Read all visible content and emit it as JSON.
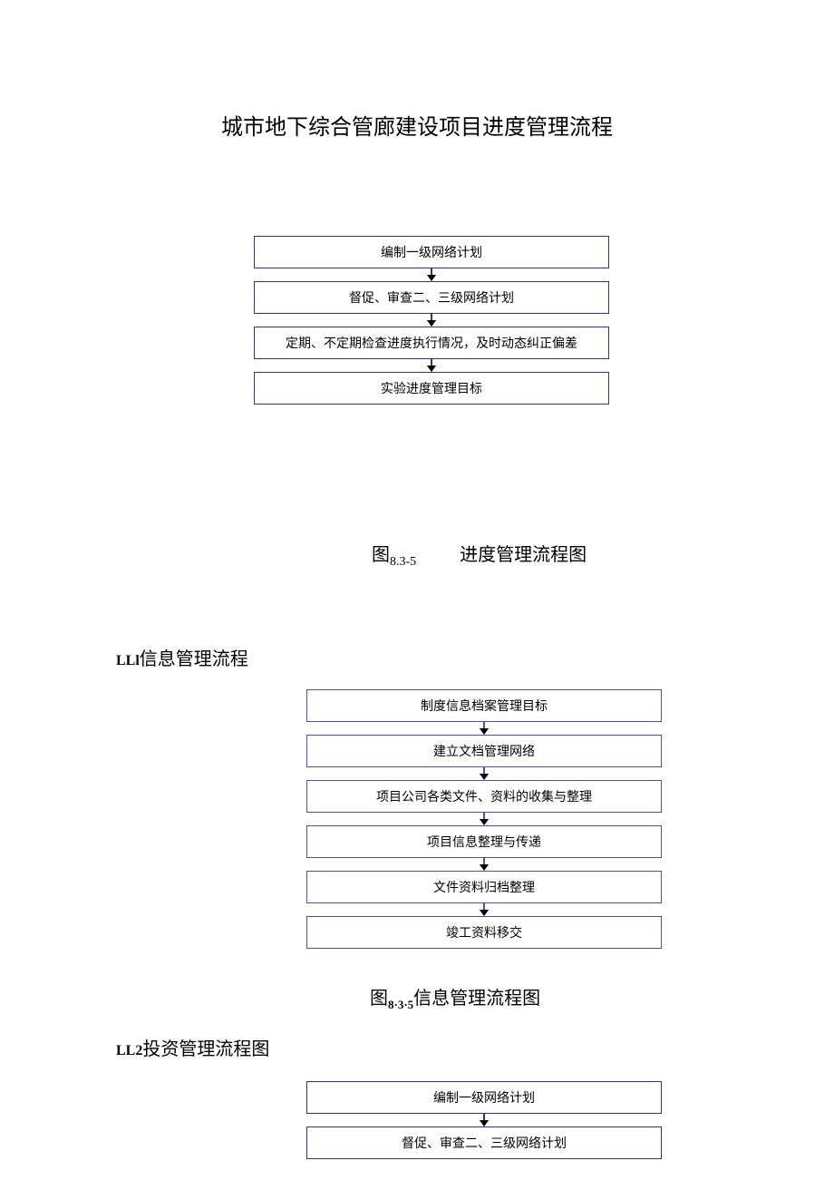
{
  "page_title": "城市地下综合管廊建设项目进度管理流程",
  "flowchart1": {
    "type": "flowchart",
    "border_color": "#2e3192",
    "arrow_color": "#2e3192",
    "background_color": "#ffffff",
    "text_color": "#000000",
    "box_fontsize": 14,
    "nodes": [
      {
        "label": "编制一级网络计划"
      },
      {
        "label": "督促、审查二、三级网络计划"
      },
      {
        "label": "定期、不定期检查进度执行情况，及时动态纠正偏差"
      },
      {
        "label": "实验进度管理目标"
      }
    ]
  },
  "caption1": {
    "prefix": "图",
    "sub": "8.3-5",
    "suffix": "进度管理流程图"
  },
  "section1": {
    "prefix": "LLl",
    "text": "信息管理流程"
  },
  "flowchart2": {
    "type": "flowchart",
    "border_color": "#4c52a8",
    "arrow_color": "#4c52a8",
    "background_color": "#ffffff",
    "text_color": "#000000",
    "box_fontsize": 14,
    "nodes": [
      {
        "label": "制度信息档案管理目标"
      },
      {
        "label": "建立文档管理网络"
      },
      {
        "label": "项目公司各类文件、资料的收集与整理"
      },
      {
        "label": "项目信息整理与传递"
      },
      {
        "label": "文件资料归档整理"
      },
      {
        "label": "竣工资料移交"
      }
    ]
  },
  "caption2": {
    "prefix": "图",
    "sub": "8·3·5",
    "suffix": "信息管理流程图"
  },
  "section2": {
    "prefix": "LL2",
    "text": "投资管理流程图"
  },
  "flowchart3": {
    "type": "flowchart",
    "border_color": "#2e3192",
    "arrow_color": "#2e3192",
    "background_color": "#ffffff",
    "text_color": "#000000",
    "box_fontsize": 14,
    "nodes": [
      {
        "label": "编制一级网络计划"
      },
      {
        "label": "督促、审查二、三级网络计划"
      }
    ]
  }
}
